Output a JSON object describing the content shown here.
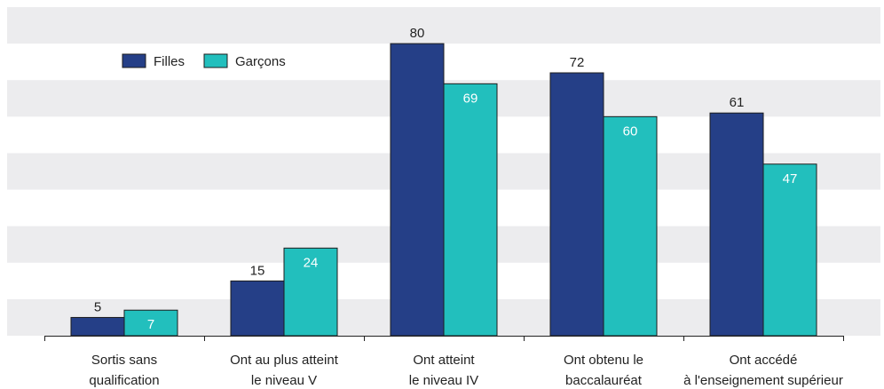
{
  "chart_data": {
    "type": "bar",
    "categories": [
      [
        "Sortis sans",
        "qualification"
      ],
      [
        "Ont au plus atteint",
        "le niveau V"
      ],
      [
        "Ont atteint",
        "le niveau IV"
      ],
      [
        "Ont obtenu le",
        "baccalauréat"
      ],
      [
        "Ont accédé",
        "à l'enseignement supérieur"
      ]
    ],
    "series": [
      {
        "name": "Filles",
        "color": "#253f87",
        "values": [
          5,
          15,
          80,
          72,
          61
        ],
        "label_position": "above"
      },
      {
        "name": "Garçons",
        "color": "#22bfbd",
        "values": [
          7,
          24,
          69,
          60,
          47
        ],
        "label_position": "inside"
      }
    ],
    "ylim": [
      0,
      90
    ],
    "grid": "alternating horizontal bands",
    "legend": "top-left",
    "title": "",
    "xlabel": "",
    "ylabel": ""
  }
}
